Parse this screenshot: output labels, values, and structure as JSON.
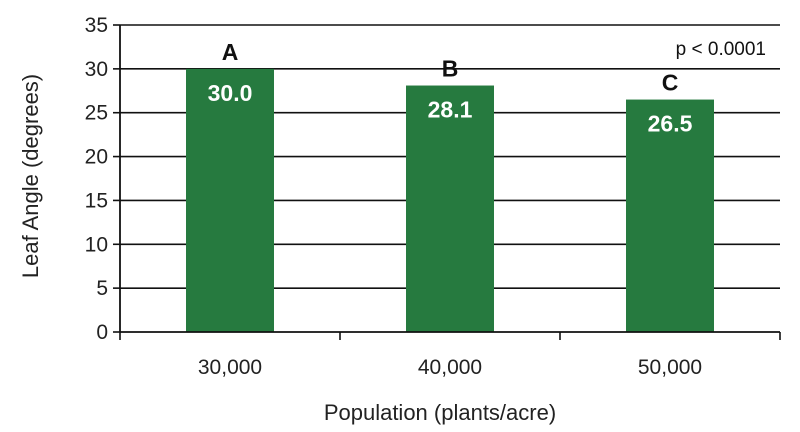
{
  "chart_data": {
    "type": "bar",
    "categories": [
      "30,000",
      "40,000",
      "50,000"
    ],
    "values": [
      30.0,
      28.1,
      26.5
    ],
    "value_labels": [
      "30.0",
      "28.1",
      "26.5"
    ],
    "significance_letters": [
      "A",
      "B",
      "C"
    ],
    "annotation": "p < 0.0001",
    "title": "",
    "xlabel": "Population (plants/acre)",
    "ylabel": "Leaf Angle (degrees)",
    "ylim": [
      0,
      35
    ],
    "yticks": [
      0,
      5,
      10,
      15,
      20,
      25,
      30,
      35
    ],
    "grid": true,
    "legend": "none",
    "bar_color": "#267a3f"
  }
}
